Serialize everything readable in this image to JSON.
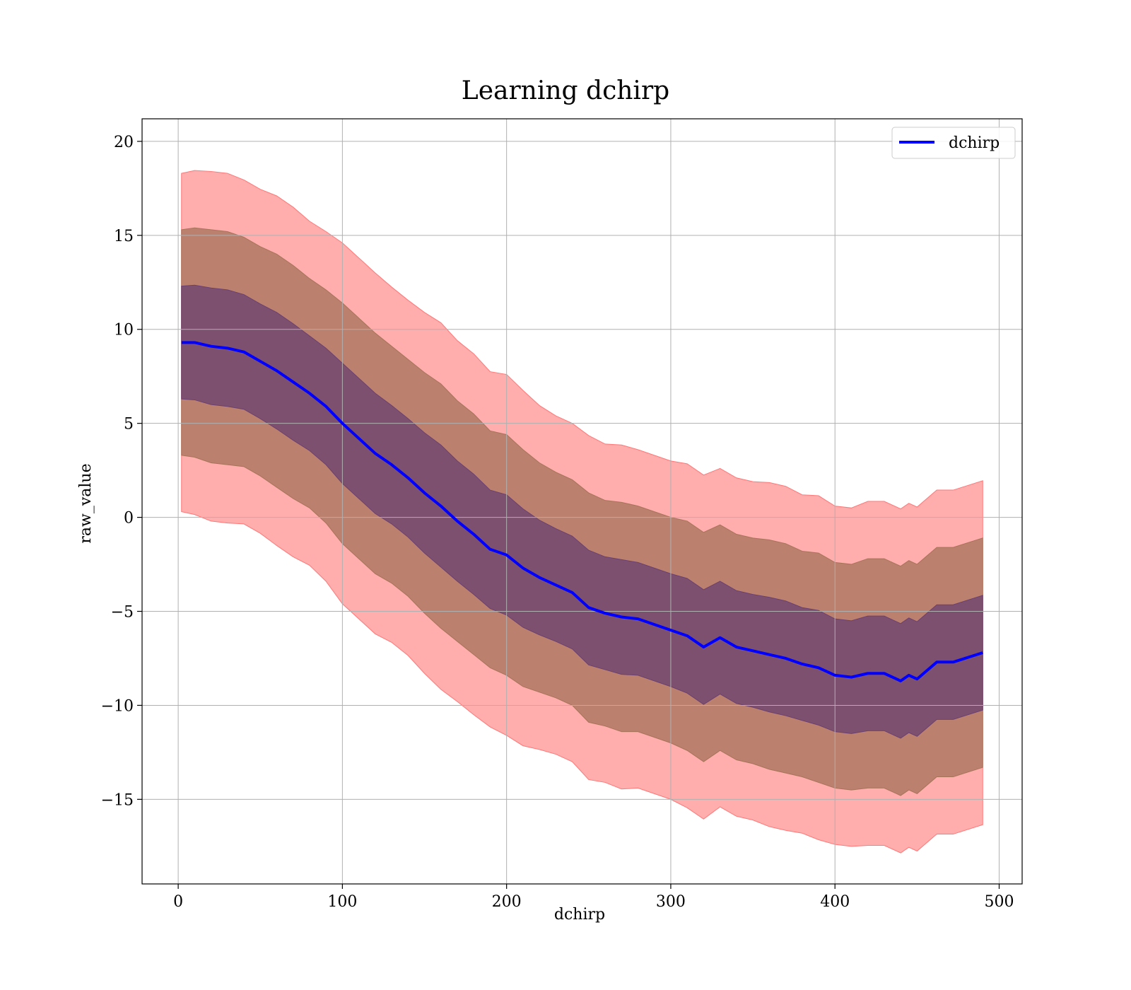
{
  "chart_data": {
    "type": "line",
    "title": "Learning dchirp",
    "xlabel": "dchirp",
    "ylabel": "raw_value",
    "xlim": [
      -22,
      514
    ],
    "ylim": [
      -19.5,
      21.2
    ],
    "xticks": [
      0,
      100,
      200,
      300,
      400,
      500
    ],
    "yticks": [
      20,
      15,
      10,
      5,
      0,
      -5,
      -10,
      -15
    ],
    "xtick_labels": [
      "0",
      "100",
      "200",
      "300",
      "400",
      "500"
    ],
    "ytick_labels": [
      "20",
      "15",
      "10",
      "5",
      "0",
      "−5",
      "−10",
      "−15"
    ],
    "grid": true,
    "legend_position": "top-right",
    "series": [
      {
        "name": "dchirp",
        "color": "#0000ff",
        "x": [
          2,
          10,
          20,
          30,
          40,
          50,
          60,
          70,
          80,
          90,
          100,
          110,
          120,
          130,
          140,
          150,
          160,
          170,
          180,
          190,
          200,
          210,
          220,
          230,
          240,
          250,
          260,
          270,
          280,
          290,
          300,
          310,
          320,
          330,
          340,
          350,
          360,
          370,
          380,
          390,
          400,
          410,
          420,
          430,
          440,
          445,
          450,
          462,
          472,
          490
        ],
        "values": [
          9.3,
          9.3,
          9.1,
          9.0,
          8.8,
          8.3,
          7.8,
          7.2,
          6.6,
          5.9,
          5.0,
          4.2,
          3.4,
          2.8,
          2.1,
          1.3,
          0.6,
          -0.2,
          -0.9,
          -1.7,
          -2.0,
          -2.7,
          -3.2,
          -3.6,
          -4.0,
          -4.8,
          -5.1,
          -5.3,
          -5.4,
          -5.7,
          -6.0,
          -6.3,
          -6.9,
          -6.4,
          -6.9,
          -7.1,
          -7.3,
          -7.5,
          -7.8,
          -8.0,
          -8.4,
          -8.5,
          -8.3,
          -8.3,
          -8.7,
          -8.4,
          -8.6,
          -7.7,
          -7.7,
          -7.2
        ]
      }
    ],
    "bands": {
      "std_multipliers": [
        3,
        2,
        1
      ],
      "std": [
        3.0,
        3.05,
        3.1,
        3.1,
        3.05,
        3.05,
        3.1,
        3.1,
        3.05,
        3.1,
        3.2,
        3.2,
        3.2,
        3.15,
        3.15,
        3.2,
        3.25,
        3.2,
        3.2,
        3.15,
        3.2,
        3.15,
        3.05,
        3.0,
        3.0,
        3.05,
        3.0,
        3.05,
        3.0,
        3.0,
        3.0,
        3.05,
        3.05,
        3.0,
        3.0,
        3.0,
        3.05,
        3.05,
        3.0,
        3.05,
        3.0,
        3.0,
        3.05,
        3.05,
        3.05,
        3.05,
        3.05,
        3.05,
        3.05,
        3.05
      ],
      "colors": [
        "#ff7777",
        "#a67359",
        "#6a4070"
      ]
    }
  }
}
